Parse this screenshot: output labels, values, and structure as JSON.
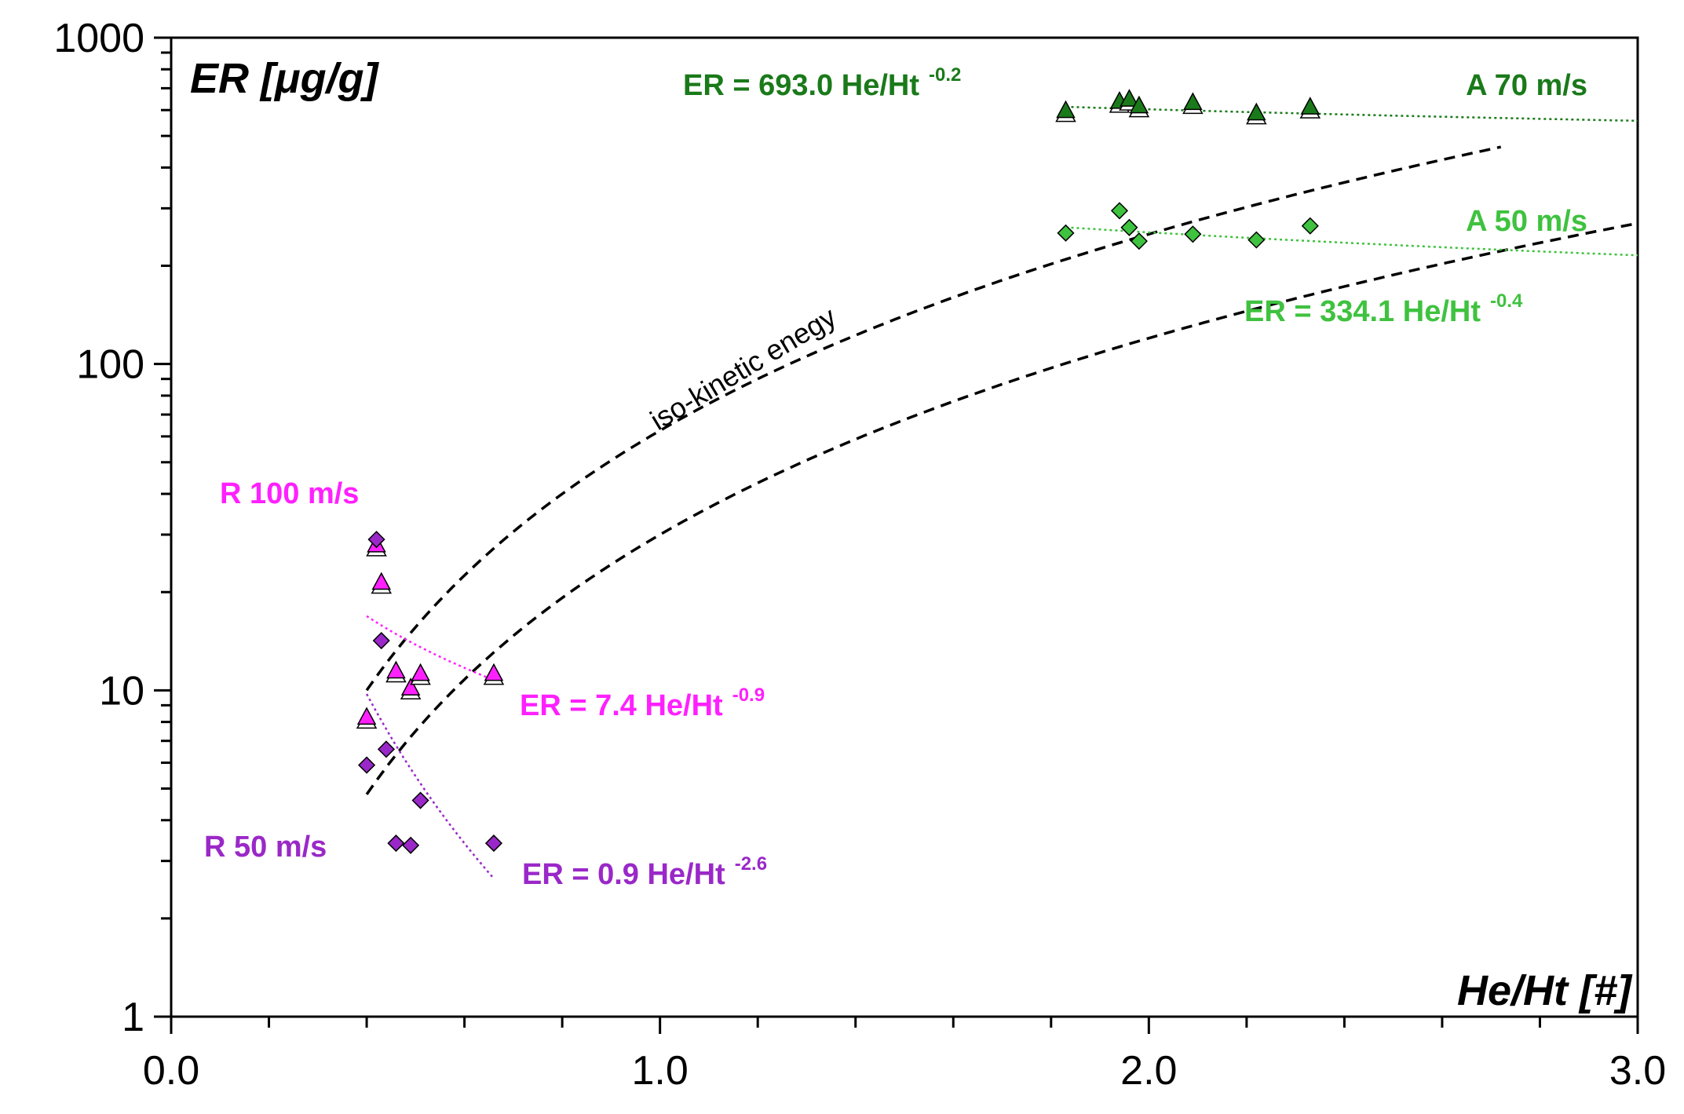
{
  "chart_data": {
    "type": "scatter",
    "title": "",
    "xlabel": "He/Ht [#]",
    "ylabel": "ER [μg/g]",
    "xlim": [
      0,
      3
    ],
    "ylim": [
      1,
      1000
    ],
    "yscale": "log",
    "x_ticks": [
      "0.0",
      "1.0",
      "2.0",
      "3.0"
    ],
    "y_ticks": [
      "1",
      "10",
      "100",
      "1000"
    ],
    "colors": {
      "a70": "#1a7a1a",
      "a50": "#3fc23f",
      "r100": "#ff20ff",
      "r50": "#9a28c8",
      "iso": "#000000"
    },
    "series": [
      {
        "name": "A 70 m/s",
        "marker": "triangle",
        "points": [
          {
            "x": 1.83,
            "y": 600
          },
          {
            "x": 1.94,
            "y": 640
          },
          {
            "x": 1.96,
            "y": 650
          },
          {
            "x": 1.98,
            "y": 620
          },
          {
            "x": 2.09,
            "y": 635
          },
          {
            "x": 2.22,
            "y": 590
          },
          {
            "x": 2.33,
            "y": 615
          }
        ],
        "fit": {
          "label": "ER = 693.0 He/Ht",
          "exponent": "-0.2",
          "coef": 693.0,
          "power": -0.2,
          "x_range": [
            1.83,
            3.0
          ]
        }
      },
      {
        "name": "A 50 m/s",
        "marker": "diamond",
        "points": [
          {
            "x": 1.83,
            "y": 252
          },
          {
            "x": 1.94,
            "y": 295
          },
          {
            "x": 1.96,
            "y": 262
          },
          {
            "x": 1.98,
            "y": 238
          },
          {
            "x": 2.09,
            "y": 250
          },
          {
            "x": 2.22,
            "y": 240
          },
          {
            "x": 2.33,
            "y": 265
          }
        ],
        "fit": {
          "label": "ER = 334.1 He/Ht",
          "exponent": "-0.4",
          "coef": 334.1,
          "power": -0.4,
          "x_range": [
            1.83,
            3.0
          ]
        }
      },
      {
        "name": "R 100 m/s",
        "marker": "triangle",
        "points": [
          {
            "x": 0.4,
            "y": 8.3
          },
          {
            "x": 0.42,
            "y": 28
          },
          {
            "x": 0.43,
            "y": 21.5
          },
          {
            "x": 0.46,
            "y": 11.5
          },
          {
            "x": 0.49,
            "y": 10.2
          },
          {
            "x": 0.51,
            "y": 11.3
          },
          {
            "x": 0.66,
            "y": 11.3
          }
        ],
        "fit": {
          "label": "ER = 7.4 He/Ht",
          "exponent": "-0.9",
          "coef": 7.4,
          "power": -0.9,
          "x_range": [
            0.4,
            0.66
          ]
        }
      },
      {
        "name": "R 50 m/s",
        "marker": "diamond",
        "points": [
          {
            "x": 0.4,
            "y": 5.9
          },
          {
            "x": 0.42,
            "y": 29
          },
          {
            "x": 0.43,
            "y": 14.2
          },
          {
            "x": 0.44,
            "y": 6.6
          },
          {
            "x": 0.46,
            "y": 3.4
          },
          {
            "x": 0.49,
            "y": 3.35
          },
          {
            "x": 0.51,
            "y": 4.6
          },
          {
            "x": 0.66,
            "y": 3.4
          }
        ],
        "fit": {
          "label": "ER = 0.9 He/Ht",
          "exponent": "-2.6",
          "coef": 0.9,
          "power": -2.6,
          "x_range": [
            0.4,
            0.66
          ]
        }
      }
    ],
    "iso_curves": {
      "label": "iso-kinetic enegy",
      "curves": [
        {
          "coef": 62.5,
          "power": 2,
          "x_range": [
            0.4,
            2.72
          ]
        },
        {
          "coef": 30.0,
          "power": 2,
          "x_range": [
            0.4,
            3.0
          ]
        }
      ]
    }
  }
}
